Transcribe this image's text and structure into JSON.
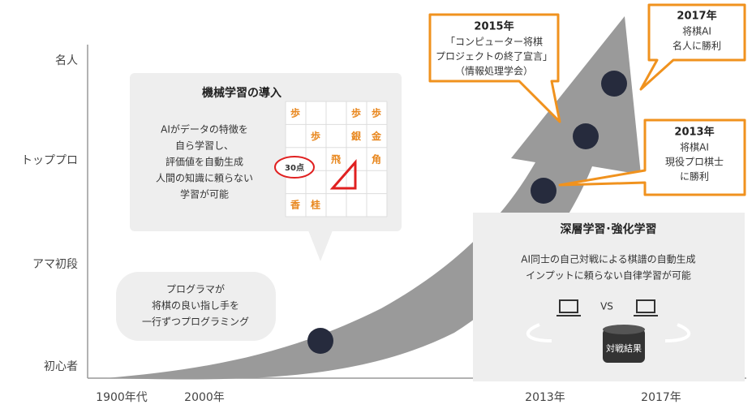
{
  "y_axis": {
    "labels": [
      "名人",
      "トッププロ",
      "アマ初段",
      "初心者"
    ]
  },
  "x_axis": {
    "labels": [
      "1900年代",
      "2000年",
      "2013年",
      "2017年"
    ]
  },
  "ml_box": {
    "title": "機械学習の導入",
    "lines": [
      "AIがデータの特徴を",
      "自ら学習し、",
      "評価値を自動生成",
      "人間の知識に頼らない",
      "学習が可能"
    ],
    "pieces": [
      "歩",
      "歩",
      "歩",
      "歩",
      "銀",
      "金",
      "飛",
      "角",
      "香",
      "桂"
    ],
    "score": "30点"
  },
  "program_bubble": {
    "lines": [
      "プログラマが",
      "将棋の良い指し手を",
      "一行ずつプログラミング"
    ]
  },
  "dl_box": {
    "title": "深層学習･強化学習",
    "lines": [
      "AI同士の自己対戦による棋譜の自動生成",
      "インプットに頼らない自律学習が可能"
    ],
    "vs": "VS",
    "result": "対戦結果"
  },
  "callouts": [
    {
      "year": "2015年",
      "lines": [
        "「コンピューター将棋",
        "プロジェクトの終了宣言」",
        "（情報処理学会）"
      ]
    },
    {
      "year": "2017年",
      "lines": [
        "将棋AI",
        "名人に勝利"
      ]
    },
    {
      "year": "2013年",
      "lines": [
        "将棋AI",
        "現役プロ棋士",
        "に勝利"
      ]
    }
  ]
}
